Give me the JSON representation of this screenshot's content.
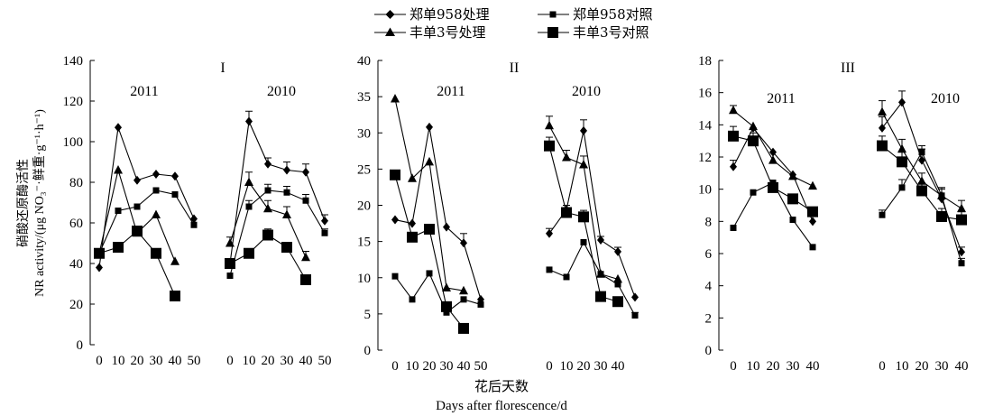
{
  "legend": {
    "items": [
      {
        "label": "郑单958处理",
        "marker": "diamond"
      },
      {
        "label": "郑单958对照",
        "marker": "small-square"
      },
      {
        "label": "丰单3号处理",
        "marker": "triangle"
      },
      {
        "label": "丰单3号对照",
        "marker": "large-square"
      }
    ]
  },
  "y_axis_label": {
    "line1": "硝酸还原酶活性",
    "line2": "NR activity/(μg NO₃⁻·鲜重·g⁻¹·h⁻¹)"
  },
  "x_axis_label": {
    "line1": "花后天数",
    "line2": "Days after florescence/d"
  },
  "chart_data": [
    {
      "type": "line",
      "panel": "I",
      "ylim": [
        0,
        140
      ],
      "yticks": [
        0,
        20,
        40,
        60,
        80,
        100,
        120,
        140
      ],
      "groups": [
        {
          "year": "2011",
          "xticks": [
            0,
            10,
            20,
            30,
            40,
            50
          ],
          "series": [
            {
              "name": "郑单958处理",
              "marker": "diamond",
              "x": [
                0,
                10,
                20,
                30,
                40,
                50
              ],
              "y": [
                38,
                107,
                81,
                84,
                83,
                62
              ],
              "err": [
                0,
                0,
                0,
                0,
                0,
                0
              ]
            },
            {
              "name": "郑单958对照",
              "marker": "small-square",
              "x": [
                0,
                10,
                20,
                30,
                40,
                50
              ],
              "y": [
                45,
                66,
                68,
                76,
                74,
                59
              ],
              "err": [
                0,
                0,
                0,
                0,
                0,
                0
              ]
            },
            {
              "name": "丰单3号处理",
              "marker": "triangle",
              "x": [
                0,
                10,
                20,
                30,
                40
              ],
              "y": [
                45,
                86,
                55,
                64,
                41
              ],
              "err": [
                0,
                0,
                0,
                0,
                0
              ]
            },
            {
              "name": "丰单3号对照",
              "marker": "large-square",
              "x": [
                0,
                10,
                20,
                30,
                40
              ],
              "y": [
                45,
                48,
                56,
                45,
                24
              ],
              "err": [
                0,
                0,
                0,
                0,
                0
              ]
            }
          ]
        },
        {
          "year": "2010",
          "xticks": [
            0,
            10,
            20,
            30,
            40,
            50
          ],
          "series": [
            {
              "name": "郑单958处理",
              "marker": "diamond",
              "x": [
                0,
                10,
                20,
                30,
                40,
                50
              ],
              "y": [
                40,
                110,
                89,
                86,
                85,
                61
              ],
              "err": [
                0,
                5,
                3,
                4,
                4,
                3
              ]
            },
            {
              "name": "郑单958对照",
              "marker": "small-square",
              "x": [
                0,
                10,
                20,
                30,
                40,
                50
              ],
              "y": [
                34,
                68,
                76,
                75,
                71,
                55
              ],
              "err": [
                0,
                3,
                3,
                3,
                3,
                2
              ]
            },
            {
              "name": "丰单3号处理",
              "marker": "triangle",
              "x": [
                0,
                10,
                20,
                30,
                40
              ],
              "y": [
                50,
                80,
                67,
                64,
                43
              ],
              "err": [
                3,
                5,
                4,
                4,
                3
              ]
            },
            {
              "name": "丰单3号对照",
              "marker": "large-square",
              "x": [
                0,
                10,
                20,
                30,
                40
              ],
              "y": [
                40,
                45,
                54,
                48,
                32
              ],
              "err": [
                0,
                0,
                3,
                0,
                0
              ]
            }
          ]
        }
      ]
    },
    {
      "type": "line",
      "panel": "II",
      "ylim": [
        0,
        40
      ],
      "yticks": [
        0,
        5,
        10,
        15,
        20,
        25,
        30,
        35,
        40
      ],
      "groups": [
        {
          "year": "2011",
          "xticks": [
            0,
            10,
            20,
            30,
            40,
            50
          ],
          "series": [
            {
              "name": "郑单958处理",
              "marker": "diamond",
              "x": [
                0,
                10,
                20,
                30,
                40,
                50
              ],
              "y": [
                18,
                17.5,
                30.8,
                17,
                14.8,
                7
              ],
              "err": [
                0,
                0,
                0,
                0,
                1.3,
                0
              ]
            },
            {
              "name": "郑单958对照",
              "marker": "small-square",
              "x": [
                0,
                10,
                20,
                30,
                40,
                50
              ],
              "y": [
                10.2,
                7,
                10.6,
                5.2,
                7,
                6.3
              ],
              "err": [
                0,
                0,
                0,
                0,
                0,
                0
              ]
            },
            {
              "name": "丰单3号处理",
              "marker": "triangle",
              "x": [
                0,
                10,
                20,
                30,
                40
              ],
              "y": [
                34.7,
                23.7,
                26,
                8.6,
                8.2
              ],
              "err": [
                0,
                0,
                0,
                0,
                0
              ]
            },
            {
              "name": "丰单3号对照",
              "marker": "large-square",
              "x": [
                0,
                10,
                20,
                30,
                40
              ],
              "y": [
                24.2,
                15.6,
                16.7,
                6,
                3
              ],
              "err": [
                0,
                0,
                0,
                0,
                0
              ]
            }
          ]
        },
        {
          "year": "2010",
          "xticks": [
            0,
            10,
            20,
            30,
            40
          ],
          "series": [
            {
              "name": "郑单958处理",
              "marker": "diamond",
              "x": [
                0,
                10,
                20,
                30,
                40,
                50
              ],
              "y": [
                16.1,
                19.4,
                30.3,
                15.2,
                13.6,
                7.3
              ],
              "err": [
                0.7,
                0,
                1.5,
                0.5,
                0.6,
                0
              ]
            },
            {
              "name": "郑单958对照",
              "marker": "small-square",
              "x": [
                0,
                10,
                20,
                30,
                40,
                50
              ],
              "y": [
                11.1,
                10.1,
                14.9,
                10.5,
                9.1,
                4.8
              ],
              "err": [
                0,
                0,
                0,
                0,
                0,
                0.4
              ]
            },
            {
              "name": "丰单3号处理",
              "marker": "triangle",
              "x": [
                0,
                10,
                20,
                30,
                40
              ],
              "y": [
                31,
                26.6,
                25.6,
                10.5,
                9.8
              ],
              "err": [
                1.3,
                1,
                1.2,
                0,
                0
              ]
            },
            {
              "name": "丰单3号对照",
              "marker": "large-square",
              "x": [
                0,
                10,
                20,
                30,
                40
              ],
              "y": [
                28.2,
                19,
                18.4,
                7.4,
                6.7
              ],
              "err": [
                1.2,
                1,
                0.9,
                0,
                0
              ]
            }
          ]
        }
      ]
    },
    {
      "type": "line",
      "panel": "III",
      "ylim": [
        0,
        18
      ],
      "yticks": [
        0,
        2,
        4,
        6,
        8,
        10,
        12,
        14,
        16,
        18
      ],
      "groups": [
        {
          "year": "2011",
          "xticks": [
            0,
            10,
            20,
            30,
            40
          ],
          "series": [
            {
              "name": "郑单958处理",
              "marker": "diamond",
              "x": [
                0,
                10,
                20,
                30,
                40
              ],
              "y": [
                11.4,
                13.8,
                12.3,
                10.9,
                8
              ],
              "err": [
                0.4,
                0,
                0,
                0,
                0
              ]
            },
            {
              "name": "郑单958对照",
              "marker": "small-square",
              "x": [
                0,
                10,
                20,
                30,
                40
              ],
              "y": [
                7.6,
                9.8,
                10.4,
                8.1,
                6.4
              ],
              "err": [
                0,
                0,
                0,
                0,
                0
              ]
            },
            {
              "name": "丰单3号处理",
              "marker": "triangle",
              "x": [
                0,
                10,
                20,
                30,
                40
              ],
              "y": [
                14.9,
                13.9,
                11.8,
                10.8,
                10.2
              ],
              "err": [
                0.3,
                0,
                0,
                0,
                0
              ]
            },
            {
              "name": "丰单3号对照",
              "marker": "large-square",
              "x": [
                0,
                10,
                20,
                30,
                40
              ],
              "y": [
                13.3,
                13,
                10.1,
                9.4,
                8.6
              ],
              "err": [
                0.6,
                0.5,
                0,
                0,
                0
              ]
            }
          ]
        },
        {
          "year": "2010",
          "xticks": [
            0,
            10,
            20,
            30,
            40
          ],
          "series": [
            {
              "name": "郑单958处理",
              "marker": "diamond",
              "x": [
                0,
                10,
                20,
                30,
                40
              ],
              "y": [
                13.8,
                15.4,
                11.8,
                9.4,
                6.1
              ],
              "err": [
                0.7,
                0.7,
                0.7,
                0.6,
                0.3
              ]
            },
            {
              "name": "郑单958对照",
              "marker": "small-square",
              "x": [
                0,
                10,
                20,
                30,
                40
              ],
              "y": [
                8.4,
                10.1,
                12.3,
                9.6,
                5.4
              ],
              "err": [
                0.3,
                0.5,
                0.4,
                0.5,
                0.3
              ]
            },
            {
              "name": "丰单3号处理",
              "marker": "triangle",
              "x": [
                0,
                10,
                20,
                30,
                40
              ],
              "y": [
                14.8,
                12.5,
                10.5,
                9.6,
                8.8
              ],
              "err": [
                0.7,
                0.6,
                0.5,
                0.5,
                0.5
              ]
            },
            {
              "name": "丰单3号对照",
              "marker": "large-square",
              "x": [
                0,
                10,
                20,
                30,
                40
              ],
              "y": [
                12.7,
                11.7,
                9.9,
                8.3,
                8.1
              ],
              "err": [
                0.6,
                0.6,
                0.5,
                0.5,
                0.5
              ]
            }
          ]
        }
      ]
    }
  ]
}
